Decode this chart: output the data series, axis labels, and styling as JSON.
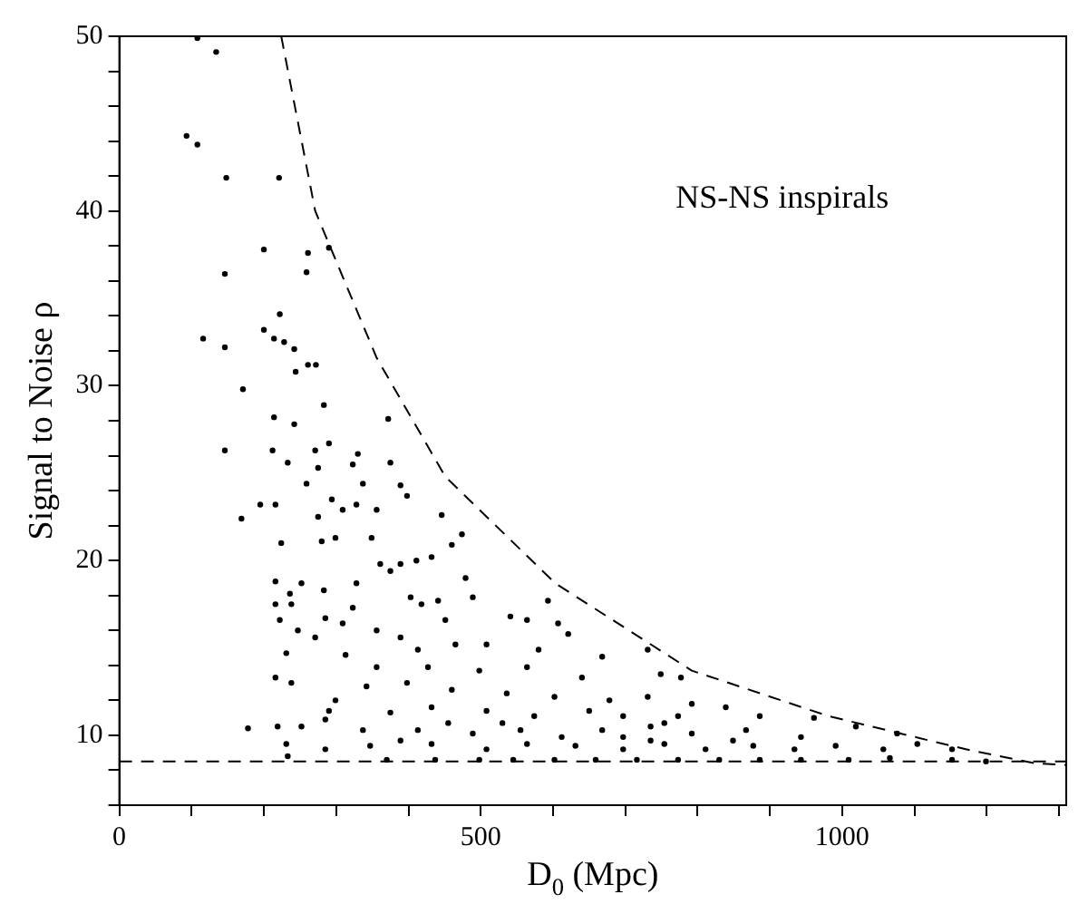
{
  "chart_data": {
    "type": "scatter",
    "xlabel": "D$_{0}$ (Mpc)",
    "ylabel": "Signal to Noise ρ",
    "annotations": [
      "NS-NS inspirals"
    ],
    "xlim": [
      0,
      1310
    ],
    "ylim": [
      6,
      50
    ],
    "xticks": [
      0,
      {
        "value": 100,
        "label": null
      },
      {
        "value": 200,
        "label": null
      },
      {
        "value": 300,
        "label": null
      },
      {
        "value": 400,
        "label": null
      },
      500,
      {
        "value": 600,
        "label": null
      },
      {
        "value": 700,
        "label": null
      },
      {
        "value": 800,
        "label": null
      },
      {
        "value": 900,
        "label": null
      },
      1000,
      {
        "value": 1100,
        "label": null
      },
      {
        "value": 1200,
        "label": null
      },
      {
        "value": 1300,
        "label": null
      }
    ],
    "yticks": [
      {
        "value": 6,
        "label": null
      },
      {
        "value": 8,
        "label": null
      },
      10,
      {
        "value": 12,
        "label": null
      },
      {
        "value": 14,
        "label": null
      },
      {
        "value": 16,
        "label": null
      },
      {
        "value": 18,
        "label": null
      },
      20,
      {
        "value": 22,
        "label": null
      },
      {
        "value": 24,
        "label": null
      },
      {
        "value": 26,
        "label": null
      },
      {
        "value": 28,
        "label": null
      },
      30,
      {
        "value": 32,
        "label": null
      },
      {
        "value": 34,
        "label": null
      },
      {
        "value": 36,
        "label": null
      },
      {
        "value": 38,
        "label": null
      },
      40,
      {
        "value": 42,
        "label": null
      },
      {
        "value": 44,
        "label": null
      },
      {
        "value": 46,
        "label": null
      },
      {
        "value": 48,
        "label": null
      },
      50
    ],
    "grid": false,
    "legend": false,
    "marker": "circle",
    "ref_lines": [
      {
        "axis": "y",
        "value": 8.5,
        "label": null,
        "color": "#000000",
        "line_style": "dashed"
      }
    ],
    "series": [
      {
        "color": "#000000",
        "x": [
          108,
          134,
          93,
          108,
          148,
          221,
          200,
          261,
          290,
          146,
          259,
          222,
          116,
          146,
          200,
          214,
          228,
          242,
          261,
          272,
          244,
          171,
          283,
          372,
          214,
          242,
          146,
          212,
          271,
          290,
          330,
          323,
          375,
          233,
          275,
          259,
          337,
          389,
          398,
          294,
          328,
          169,
          195,
          216,
          275,
          309,
          356,
          446,
          224,
          280,
          299,
          474,
          460,
          432,
          349,
          361,
          389,
          411,
          375,
          216,
          252,
          283,
          328,
          479,
          236,
          216,
          238,
          323,
          403,
          418,
          441,
          489,
          593,
          222,
          247,
          285,
          309,
          356,
          451,
          541,
          564,
          607,
          271,
          389,
          413,
          465,
          508,
          580,
          621,
          668,
          731,
          231,
          313,
          356,
          427,
          498,
          564,
          640,
          749,
          777,
          216,
          238,
          342,
          398,
          460,
          536,
          602,
          678,
          731,
          792,
          299,
          290,
          375,
          432,
          508,
          574,
          650,
          697,
          839,
          886,
          961,
          1019,
          178,
          219,
          252,
          285,
          337,
          413,
          489,
          555,
          612,
          668,
          735,
          792,
          867,
          943,
          1076,
          231,
          285,
          347,
          432,
          508,
          564,
          631,
          697,
          754,
          811,
          877,
          934,
          991,
          1057,
          1104,
          1152,
          233,
          370,
          437,
          498,
          545,
          602,
          659,
          716,
          773,
          830,
          886,
          943,
          1009,
          1066,
          1152,
          1199,
          697,
          735,
          754,
          849,
          773,
          530,
          455,
          389
        ],
        "values": [
          49.9,
          49.1,
          44.3,
          43.8,
          41.9,
          41.9,
          37.8,
          37.6,
          37.9,
          36.4,
          36.5,
          34.1,
          32.7,
          32.2,
          33.2,
          32.7,
          32.5,
          32.1,
          31.2,
          31.2,
          30.8,
          29.8,
          28.9,
          28.1,
          28.2,
          27.8,
          26.3,
          26.3,
          26.3,
          26.7,
          26.1,
          25.5,
          25.6,
          25.6,
          25.3,
          24.4,
          24.4,
          24.3,
          23.7,
          23.5,
          23.2,
          22.4,
          23.2,
          23.2,
          22.5,
          22.9,
          22.9,
          22.6,
          21.0,
          21.1,
          21.3,
          21.5,
          20.9,
          20.2,
          21.3,
          19.8,
          19.8,
          20.0,
          19.4,
          18.8,
          18.7,
          18.3,
          18.7,
          19.0,
          18.1,
          17.5,
          17.5,
          17.3,
          17.9,
          17.5,
          17.7,
          17.9,
          17.7,
          16.6,
          16.0,
          16.7,
          16.4,
          16.0,
          16.6,
          16.8,
          16.6,
          16.4,
          15.6,
          15.6,
          14.9,
          15.2,
          15.2,
          14.9,
          15.8,
          14.5,
          14.9,
          14.7,
          14.6,
          13.9,
          13.9,
          13.7,
          13.9,
          13.3,
          13.5,
          13.3,
          13.3,
          13.0,
          12.8,
          13.0,
          12.6,
          12.4,
          12.2,
          12.0,
          12.2,
          11.8,
          12.0,
          11.4,
          11.3,
          11.6,
          11.4,
          11.1,
          11.4,
          11.1,
          11.6,
          11.1,
          11.0,
          10.5,
          10.4,
          10.5,
          10.5,
          10.9,
          10.3,
          10.3,
          10.1,
          10.3,
          9.9,
          10.3,
          10.5,
          10.1,
          10.3,
          9.9,
          10.1,
          9.5,
          9.2,
          9.4,
          9.5,
          9.2,
          9.5,
          9.4,
          9.2,
          9.5,
          9.2,
          9.4,
          9.2,
          9.4,
          9.2,
          9.5,
          9.2,
          8.8,
          8.6,
          8.6,
          8.6,
          8.6,
          8.6,
          8.6,
          8.6,
          8.6,
          8.6,
          8.6,
          8.6,
          8.6,
          8.7,
          8.6,
          8.5,
          9.9,
          9.7,
          10.7,
          9.7,
          11.1,
          10.7,
          10.7,
          9.7
        ]
      },
      {
        "type": "line",
        "color": "#000000",
        "line_style": "dashed",
        "marker": "none",
        "x": [
          224,
          271,
          356,
          451,
          603,
          792,
          981,
          1171,
          1266,
          1310
        ],
        "values": [
          50,
          40,
          31.6,
          24.8,
          18.7,
          13.7,
          11.1,
          9.2,
          8.4,
          8.3
        ]
      }
    ]
  }
}
